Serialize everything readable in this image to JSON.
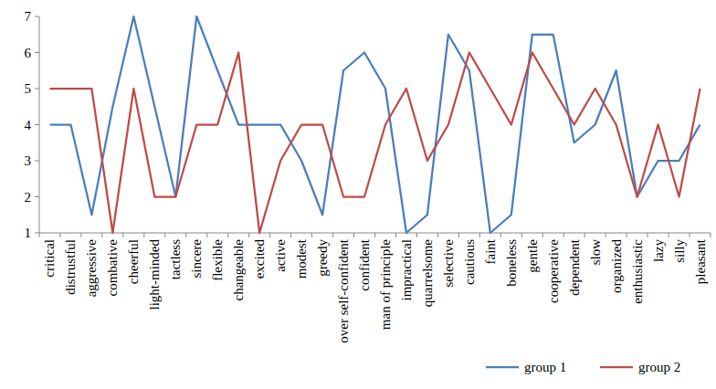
{
  "chart_data": {
    "type": "line",
    "categories": [
      "critical",
      "distrustful",
      "aggressive",
      "combative",
      "cheerful",
      "light-minded",
      "tactless",
      "sincere",
      "flexible",
      "changeable",
      "excited",
      "active",
      "modest",
      "greedy",
      "over self-confident",
      "confident",
      "man of principle",
      "impractical",
      "quarrelsome",
      "selective",
      "cautious",
      "faint",
      "boneless",
      "gentle",
      "cooperative",
      "dependent",
      "slow",
      "organized",
      "enthusiastic",
      "lazy",
      "silly",
      "pleasant"
    ],
    "series": [
      {
        "name": "group 1",
        "color": "#4a7ebb",
        "values": [
          4,
          4,
          1.5,
          4.5,
          7,
          4.5,
          2,
          7,
          5.5,
          4,
          4,
          4,
          3,
          1.5,
          5.5,
          6,
          5,
          1,
          1.5,
          6.5,
          5.5,
          1,
          1.5,
          6.5,
          6.5,
          3.5,
          4,
          5.5,
          2,
          3,
          3,
          4
        ]
      },
      {
        "name": "group 2",
        "color": "#be4b48",
        "values": [
          5,
          5,
          5,
          1,
          5,
          2,
          2,
          4,
          4,
          6,
          1,
          3,
          4,
          4,
          2,
          2,
          4,
          5,
          3,
          4,
          6,
          5,
          4,
          6,
          5,
          4,
          5,
          4,
          2,
          4,
          2,
          5
        ]
      }
    ],
    "ylim": [
      1,
      7
    ],
    "yticks": [
      1,
      2,
      3,
      4,
      5,
      6,
      7
    ],
    "grid": false,
    "legend": "bottom-right"
  }
}
